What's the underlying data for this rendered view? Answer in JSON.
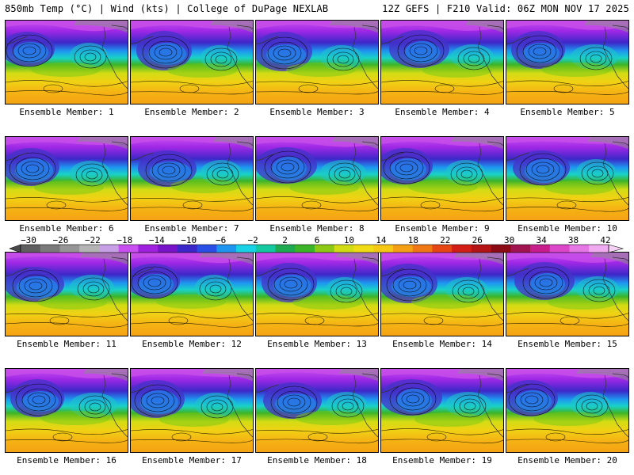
{
  "header": {
    "left_title": "850mb Temp (°C) | Wind (kts) | College of DuPage NEXLAB",
    "right_title": "12Z GEFS | F210 Valid: 06Z MON NOV 17 2025"
  },
  "members": [
    "Ensemble Member: 1",
    "Ensemble Member: 2",
    "Ensemble Member: 3",
    "Ensemble Member: 4",
    "Ensemble Member: 5",
    "Ensemble Member: 6",
    "Ensemble Member: 7",
    "Ensemble Member: 8",
    "Ensemble Member: 9",
    "Ensemble Member: 10",
    "Ensemble Member: 11",
    "Ensemble Member: 12",
    "Ensemble Member: 13",
    "Ensemble Member: 14",
    "Ensemble Member: 15",
    "Ensemble Member: 16",
    "Ensemble Member: 17",
    "Ensemble Member: 18",
    "Ensemble Member: 19",
    "Ensemble Member: 20"
  ],
  "colorbar": {
    "ticks": [
      "−30",
      "−26",
      "−22",
      "−18",
      "−14",
      "−10",
      "−6",
      "−2",
      "2",
      "6",
      "10",
      "14",
      "18",
      "22",
      "26",
      "30",
      "34",
      "38",
      "42"
    ],
    "colors": [
      "#5f5f5f",
      "#7a7a7a",
      "#969696",
      "#b4b4b4",
      "#c8a0e6",
      "#c850f0",
      "#a020e0",
      "#7814c8",
      "#3c28c8",
      "#2850e6",
      "#1e96f0",
      "#19d2e6",
      "#14c8a0",
      "#1eaa50",
      "#3cb428",
      "#8cc814",
      "#d2dc14",
      "#f0dc14",
      "#f5c814",
      "#f5a014",
      "#f07814",
      "#e64614",
      "#d21e14",
      "#b41414",
      "#8c0a14",
      "#a01450",
      "#c81e8c",
      "#dc46c8",
      "#e678e6",
      "#f0aaf0"
    ]
  }
}
